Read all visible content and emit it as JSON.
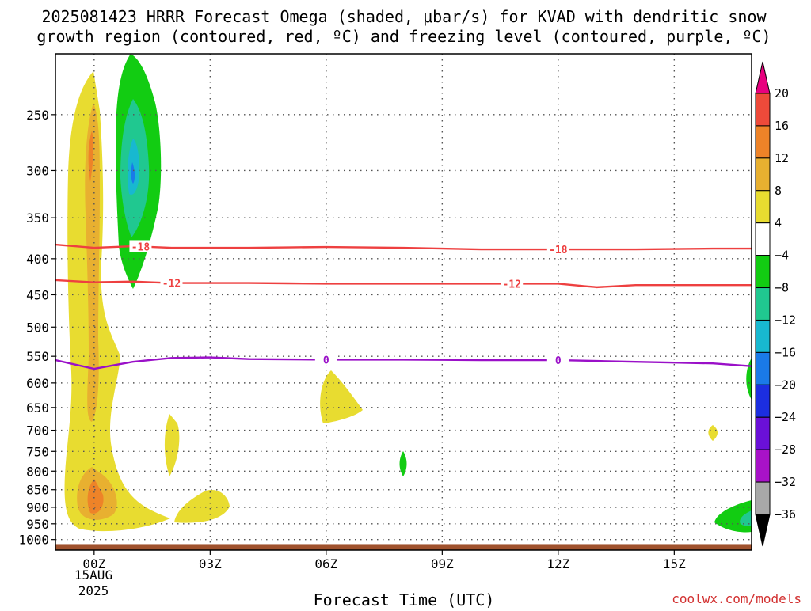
{
  "chart_data": {
    "type": "time-height cross section (filled contour + line contours)",
    "title_line1": "2025081423 HRRR Forecast Omega (shaded, μbar/s) for KVAD with dendritic snow",
    "title_line2": "growth region (contoured, red, ºC) and freezing level (contoured, purple, ºC)",
    "xlabel": "Forecast Time (UTC)",
    "x_ticks": [
      "00Z",
      "03Z",
      "06Z",
      "09Z",
      "12Z",
      "15Z"
    ],
    "x_date_line1": "15AUG",
    "x_date_line2": "2025",
    "xlim_hours_from_00Z": [
      -1,
      17
    ],
    "y_axis": "pressure (hPa), log scale, inverted",
    "y_ticks": [
      250,
      300,
      350,
      400,
      450,
      500,
      550,
      600,
      650,
      700,
      750,
      800,
      850,
      900,
      950,
      1000
    ],
    "ylim": [
      1035,
      205
    ],
    "grid": true,
    "colorbar": {
      "position": "right",
      "labels": [
        "20",
        "16",
        "12",
        "8",
        "4",
        "−4",
        "−8",
        "−12",
        "−16",
        "−20",
        "−24",
        "−28",
        "−32",
        "−36"
      ],
      "bins": [
        {
          "range": ">20",
          "color": "#e8007f"
        },
        {
          "range": "16 to 20",
          "color": "#ee4a3a"
        },
        {
          "range": "12 to 16",
          "color": "#ee8328"
        },
        {
          "range": "8 to 12",
          "color": "#e8b030"
        },
        {
          "range": "4 to 8",
          "color": "#e8dc30"
        },
        {
          "range": "-4 to 4",
          "color": "#ffffff"
        },
        {
          "range": "-8 to -4",
          "color": "#12cc12"
        },
        {
          "range": "-12 to -8",
          "color": "#20c890"
        },
        {
          "range": "-16 to -12",
          "color": "#18b8d0"
        },
        {
          "range": "-20 to -16",
          "color": "#1a7ae8"
        },
        {
          "range": "-24 to -20",
          "color": "#1c2ee0"
        },
        {
          "range": "-28 to -24",
          "color": "#6a10d8"
        },
        {
          "range": "-32 to -28",
          "color": "#a812c8"
        },
        {
          "range": "-36 to -32",
          "color": "#a8a8a8"
        },
        {
          "range": "<-36",
          "color": "#000000"
        }
      ]
    },
    "contour_lines": [
      {
        "kind": "dendritic snow growth",
        "color": "#ee4040",
        "labels": [
          "-18",
          "-18"
        ],
        "points": [
          [
            -1,
            382
          ],
          [
            0,
            386
          ],
          [
            1,
            384
          ],
          [
            2,
            386
          ],
          [
            4,
            386
          ],
          [
            6,
            385
          ],
          [
            8,
            386
          ],
          [
            10,
            388
          ],
          [
            12,
            388
          ],
          [
            14,
            388
          ],
          [
            16,
            387
          ],
          [
            17,
            387
          ]
        ]
      },
      {
        "kind": "dendritic snow growth",
        "color": "#ee4040",
        "labels": [
          "-12",
          "-12"
        ],
        "points": [
          [
            -1,
            429
          ],
          [
            0,
            432
          ],
          [
            1,
            431
          ],
          [
            2,
            433
          ],
          [
            4,
            433
          ],
          [
            6,
            434
          ],
          [
            8,
            434
          ],
          [
            10,
            434
          ],
          [
            12,
            434
          ],
          [
            13,
            439
          ],
          [
            14,
            436
          ],
          [
            16,
            436
          ],
          [
            17,
            436
          ]
        ]
      },
      {
        "kind": "freezing level",
        "color": "#9a10c8",
        "labels": [
          "0",
          "0"
        ],
        "points": [
          [
            -1,
            557
          ],
          [
            0,
            573
          ],
          [
            1,
            560
          ],
          [
            2,
            553
          ],
          [
            3,
            552
          ],
          [
            4,
            555
          ],
          [
            6,
            556
          ],
          [
            8,
            556
          ],
          [
            10,
            557
          ],
          [
            12,
            557
          ],
          [
            14,
            560
          ],
          [
            16,
            563
          ],
          [
            17,
            568
          ]
        ]
      }
    ],
    "ground_below_hPa": 1015,
    "ground_color": "#a0522d",
    "colorbar_max_extension_color": "#e8007f"
  },
  "footer": {
    "credit": "coolwx.com/models"
  }
}
